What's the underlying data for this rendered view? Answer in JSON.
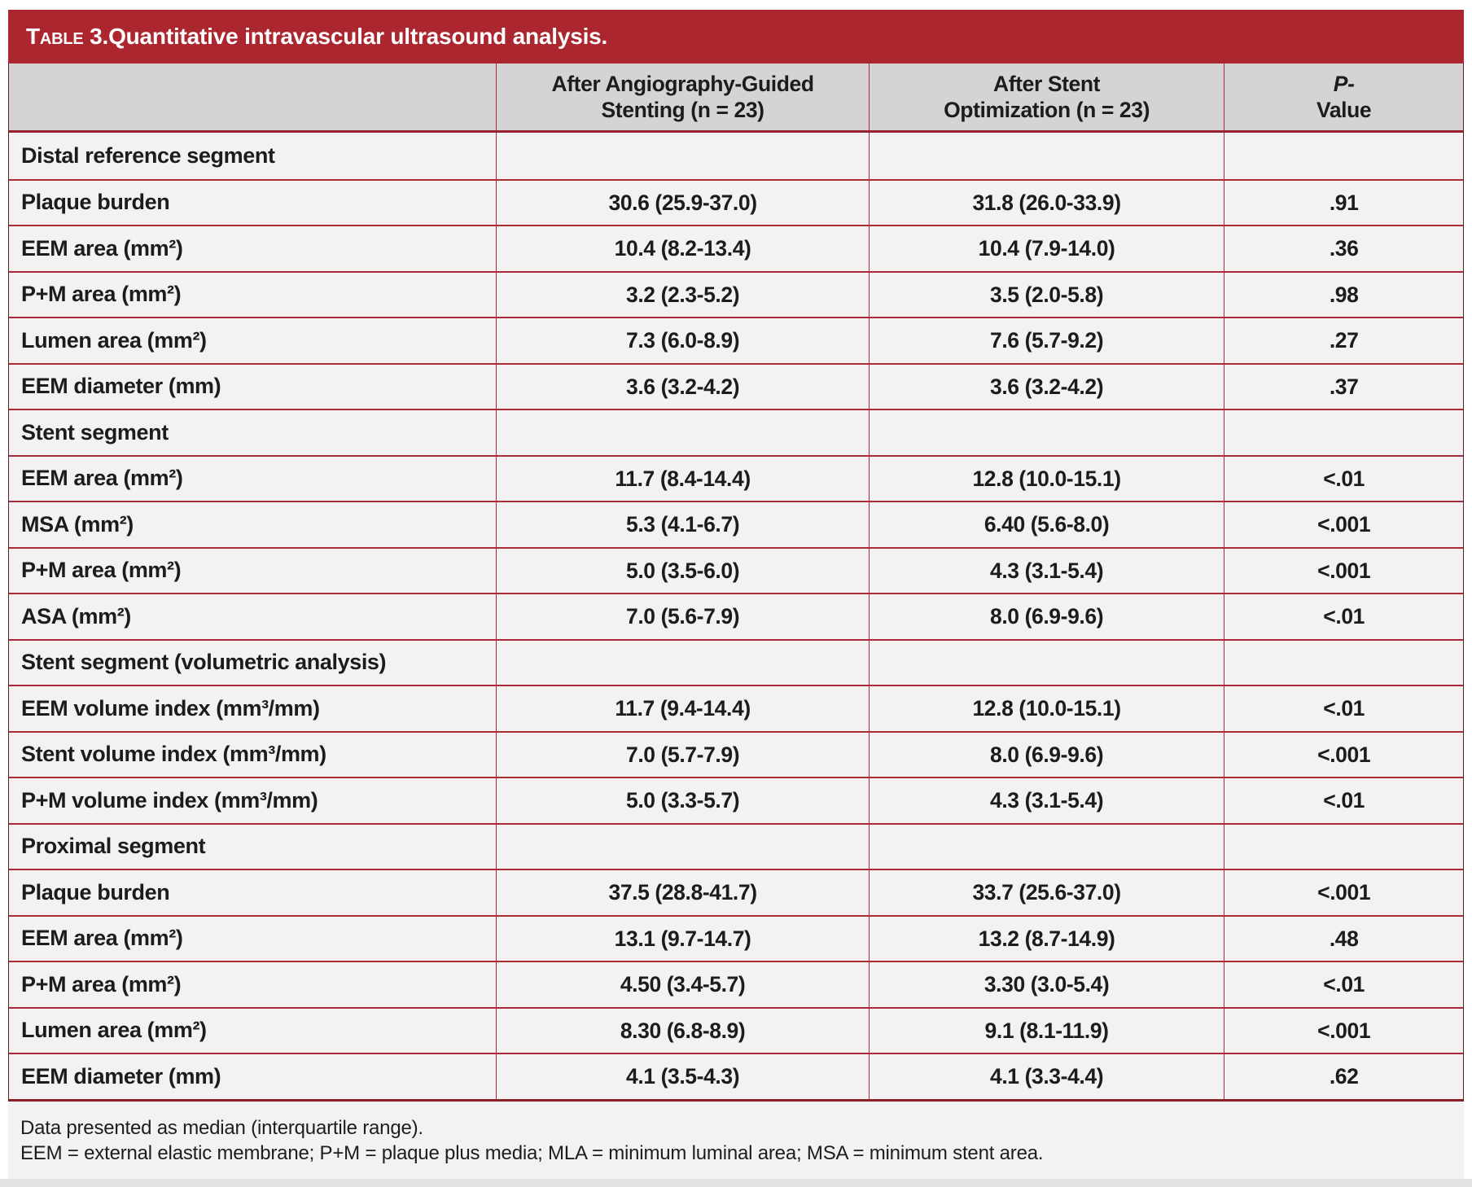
{
  "title": {
    "label": "Table 3.",
    "text": "Quantitative intravascular ultrasound analysis."
  },
  "header": {
    "col1": "",
    "col2_line1": "After Angiography-Guided",
    "col2_line2": "Stenting (n = 23)",
    "col3_line1": "After Stent",
    "col3_line2": "Optimization (n = 23)",
    "col4_line1": "P-",
    "col4_line2": "Value"
  },
  "table": {
    "rows": [
      {
        "label": "Distal reference segment",
        "col1": "",
        "col2": "",
        "p": "",
        "section": true
      },
      {
        "label": "Plaque burden",
        "col1": "30.6 (25.9-37.0)",
        "col2": "31.8 (26.0-33.9)",
        "p": ".91",
        "section": false
      },
      {
        "label": "EEM area (mm²)",
        "col1": "10.4 (8.2-13.4)",
        "col2": "10.4 (7.9-14.0)",
        "p": ".36",
        "section": false
      },
      {
        "label": "P+M area (mm²)",
        "col1": "3.2 (2.3-5.2)",
        "col2": "3.5 (2.0-5.8)",
        "p": ".98",
        "section": false
      },
      {
        "label": "Lumen area (mm²)",
        "col1": "7.3 (6.0-8.9)",
        "col2": "7.6 (5.7-9.2)",
        "p": ".27",
        "section": false
      },
      {
        "label": "EEM diameter (mm)",
        "col1": "3.6 (3.2-4.2)",
        "col2": "3.6 (3.2-4.2)",
        "p": ".37",
        "section": false
      },
      {
        "label": "Stent segment",
        "col1": "",
        "col2": "",
        "p": "",
        "section": true
      },
      {
        "label": "EEM area (mm²)",
        "col1": "11.7 (8.4-14.4)",
        "col2": "12.8 (10.0-15.1)",
        "p": "<.01",
        "section": false
      },
      {
        "label": "MSA (mm²)",
        "col1": "5.3 (4.1-6.7)",
        "col2": "6.40 (5.6-8.0)",
        "p": "<.001",
        "section": false
      },
      {
        "label": "P+M area (mm²)",
        "col1": "5.0 (3.5-6.0)",
        "col2": "4.3 (3.1-5.4)",
        "p": "<.001",
        "section": false
      },
      {
        "label": "ASA (mm²)",
        "col1": "7.0 (5.6-7.9)",
        "col2": "8.0 (6.9-9.6)",
        "p": "<.01",
        "section": false
      },
      {
        "label": "Stent segment (volumetric analysis)",
        "col1": "",
        "col2": "",
        "p": "",
        "section": true
      },
      {
        "label": "EEM volume index (mm³/mm)",
        "col1": "11.7 (9.4-14.4)",
        "col2": "12.8 (10.0-15.1)",
        "p": "<.01",
        "section": false
      },
      {
        "label": "Stent volume index (mm³/mm)",
        "col1": "7.0 (5.7-7.9)",
        "col2": "8.0 (6.9-9.6)",
        "p": "<.001",
        "section": false
      },
      {
        "label": "P+M volume index (mm³/mm)",
        "col1": "5.0 (3.3-5.7)",
        "col2": "4.3 (3.1-5.4)",
        "p": "<.01",
        "section": false
      },
      {
        "label": "Proximal segment",
        "col1": "",
        "col2": "",
        "p": "",
        "section": true
      },
      {
        "label": "Plaque burden",
        "col1": "37.5 (28.8-41.7)",
        "col2": "33.7 (25.6-37.0)",
        "p": "<.001",
        "section": false
      },
      {
        "label": "EEM area (mm²)",
        "col1": "13.1 (9.7-14.7)",
        "col2": "13.2 (8.7-14.9)",
        "p": ".48",
        "section": false
      },
      {
        "label": "P+M area (mm²)",
        "col1": "4.50 (3.4-5.7)",
        "col2": "3.30 (3.0-5.4)",
        "p": "<.01",
        "section": false
      },
      {
        "label": "Lumen area (mm²)",
        "col1": "8.30 (6.8-8.9)",
        "col2": "9.1 (8.1-11.9)",
        "p": "<.001",
        "section": false
      },
      {
        "label": "EEM diameter (mm)",
        "col1": "4.1 (3.5-4.3)",
        "col2": "4.1 (3.3-4.4)",
        "p": ".62",
        "section": false
      }
    ]
  },
  "footnotes": [
    "Data presented as median (interquartile range).",
    "EEM = external elastic membrane; P+M = plaque plus media; MLA = minimum luminal area; MSA = minimum stent area."
  ],
  "colors": {
    "accent_red": "#ab262f",
    "line_red": "#ad2a38",
    "header_bg": "#d5d4d4",
    "row_bg": "#f3f1f1",
    "text": "#1d1b1c"
  }
}
